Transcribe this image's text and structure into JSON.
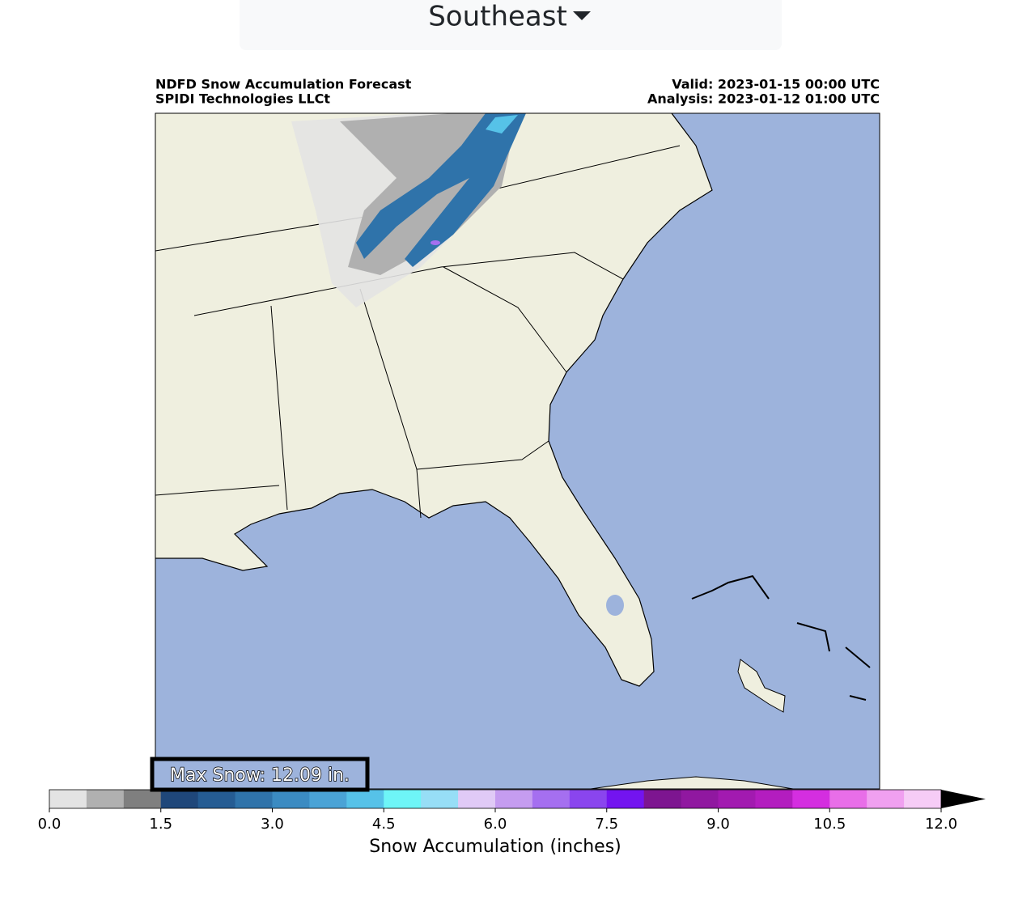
{
  "header": {
    "dropdown": "Southeast"
  },
  "map": {
    "title_left": [
      "NDFD Snow Accumulation Forecast",
      "SPIDI Technologies LLCt"
    ],
    "title_right": [
      "Valid: 2023-01-15 00:00 UTC",
      "Analysis: 2023-01-12 01:00 UTC"
    ],
    "max_snow": "Max Snow: 12.09 in."
  },
  "colorbar": {
    "label": "Snow Accumulation (inches)",
    "lim": [
      0,
      12
    ],
    "colors": [
      "#e3e3e3",
      "#b0b0b0",
      "#7f7f7f",
      "#1f477a",
      "#255c93",
      "#2f73aa",
      "#3b8bc2",
      "#4aa3d6",
      "#56c2e8",
      "#6ef5f7",
      "#97def6",
      "#e0caf6",
      "#c59cf0",
      "#a56ff0",
      "#8a45ee",
      "#7314f0",
      "#7d1590",
      "#9018a0",
      "#a21ab0",
      "#b31dbf",
      "#d42ee0",
      "#e86ee8",
      "#f0a0f0",
      "#f6ccf6"
    ],
    "extend_color": "#000000",
    "ticks": [
      {
        "value": 0,
        "label": "0.0"
      },
      {
        "value": 1.5,
        "label": "1.5"
      },
      {
        "value": 3,
        "label": "3.0"
      },
      {
        "value": 4.5,
        "label": "4.5"
      },
      {
        "value": 6,
        "label": "6.0"
      },
      {
        "value": 7.5,
        "label": "7.5"
      },
      {
        "value": 9,
        "label": "9.0"
      },
      {
        "value": 10.5,
        "label": "10.5"
      },
      {
        "value": 12,
        "label": "12.0"
      }
    ]
  }
}
